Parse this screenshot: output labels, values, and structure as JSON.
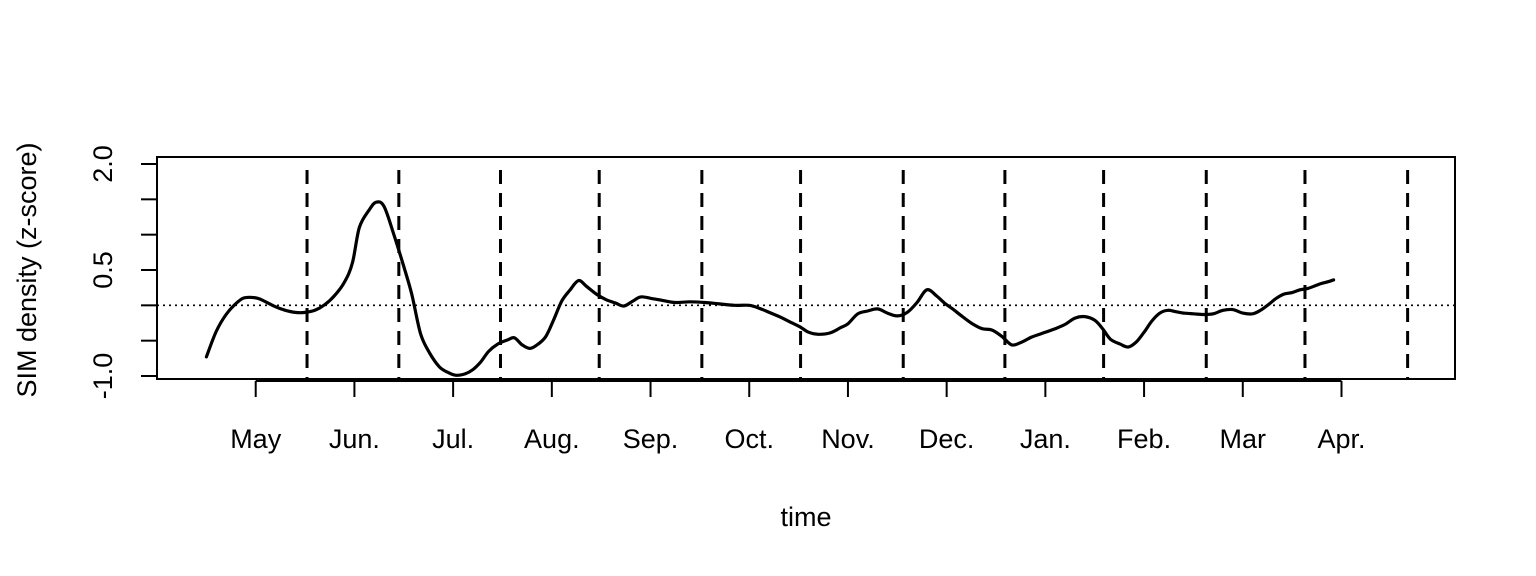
{
  "chart_data": {
    "type": "line",
    "title": "",
    "xlabel": "time",
    "ylabel": "SIM density (z-score)",
    "ylim": [
      -1.0,
      2.0
    ],
    "xlim": [
      -0.5,
      12.65
    ],
    "x_ticks": [
      {
        "pos": 0.5,
        "label": "May"
      },
      {
        "pos": 1.5,
        "label": "Jun."
      },
      {
        "pos": 2.5,
        "label": "Jul."
      },
      {
        "pos": 3.5,
        "label": "Aug."
      },
      {
        "pos": 4.5,
        "label": "Sep."
      },
      {
        "pos": 5.5,
        "label": "Oct."
      },
      {
        "pos": 6.5,
        "label": "Nov."
      },
      {
        "pos": 7.5,
        "label": "Dec."
      },
      {
        "pos": 8.5,
        "label": "Jan."
      },
      {
        "pos": 9.5,
        "label": "Feb."
      },
      {
        "pos": 10.5,
        "label": "Mar"
      },
      {
        "pos": 11.5,
        "label": "Apr."
      }
    ],
    "y_ticks": [
      -1.0,
      -0.5,
      0.0,
      0.5,
      1.0,
      1.5,
      2.0
    ],
    "y_tick_labels": [
      {
        "value": -1.0,
        "label": "-1.0"
      },
      {
        "value": 0.5,
        "label": "0.5"
      },
      {
        "value": 2.0,
        "label": "2.0"
      }
    ],
    "vlines": [
      1.02,
      1.95,
      2.98,
      3.98,
      5.02,
      6.02,
      7.06,
      8.09,
      9.09,
      10.13,
      11.13,
      12.17
    ],
    "vline_style": "dashed",
    "hline": 0.0,
    "hline_style": "dotted",
    "grid": false,
    "series": [
      {
        "values": [
          [
            0.0,
            -0.73
          ],
          [
            0.1,
            -0.37
          ],
          [
            0.2,
            -0.13
          ],
          [
            0.32,
            0.05
          ],
          [
            0.4,
            0.11
          ],
          [
            0.52,
            0.1
          ],
          [
            0.6,
            0.05
          ],
          [
            0.7,
            -0.02
          ],
          [
            0.8,
            -0.07
          ],
          [
            0.9,
            -0.1
          ],
          [
            1.0,
            -0.1
          ],
          [
            1.1,
            -0.07
          ],
          [
            1.2,
            0.01
          ],
          [
            1.3,
            0.14
          ],
          [
            1.4,
            0.33
          ],
          [
            1.48,
            0.6
          ],
          [
            1.55,
            1.1
          ],
          [
            1.65,
            1.35
          ],
          [
            1.72,
            1.46
          ],
          [
            1.8,
            1.4
          ],
          [
            1.9,
            1.0
          ],
          [
            2.0,
            0.55
          ],
          [
            2.08,
            0.16
          ],
          [
            2.17,
            -0.4
          ],
          [
            2.26,
            -0.67
          ],
          [
            2.36,
            -0.87
          ],
          [
            2.45,
            -0.95
          ],
          [
            2.53,
            -0.99
          ],
          [
            2.62,
            -0.97
          ],
          [
            2.7,
            -0.91
          ],
          [
            2.78,
            -0.8
          ],
          [
            2.86,
            -0.65
          ],
          [
            2.95,
            -0.55
          ],
          [
            3.05,
            -0.49
          ],
          [
            3.12,
            -0.46
          ],
          [
            3.2,
            -0.56
          ],
          [
            3.28,
            -0.61
          ],
          [
            3.36,
            -0.55
          ],
          [
            3.44,
            -0.44
          ],
          [
            3.52,
            -0.2
          ],
          [
            3.6,
            0.06
          ],
          [
            3.68,
            0.21
          ],
          [
            3.77,
            0.35
          ],
          [
            3.85,
            0.27
          ],
          [
            3.95,
            0.16
          ],
          [
            4.05,
            0.08
          ],
          [
            4.15,
            0.03
          ],
          [
            4.23,
            -0.01
          ],
          [
            4.32,
            0.06
          ],
          [
            4.4,
            0.12
          ],
          [
            4.5,
            0.1
          ],
          [
            4.62,
            0.07
          ],
          [
            4.75,
            0.04
          ],
          [
            4.9,
            0.05
          ],
          [
            5.05,
            0.04
          ],
          [
            5.2,
            0.02
          ],
          [
            5.35,
            0.0
          ],
          [
            5.5,
            0.0
          ],
          [
            5.6,
            -0.04
          ],
          [
            5.72,
            -0.11
          ],
          [
            5.82,
            -0.17
          ],
          [
            5.92,
            -0.24
          ],
          [
            6.02,
            -0.31
          ],
          [
            6.1,
            -0.38
          ],
          [
            6.2,
            -0.41
          ],
          [
            6.32,
            -0.39
          ],
          [
            6.42,
            -0.32
          ],
          [
            6.5,
            -0.26
          ],
          [
            6.6,
            -0.12
          ],
          [
            6.7,
            -0.08
          ],
          [
            6.8,
            -0.05
          ],
          [
            6.9,
            -0.11
          ],
          [
            7.0,
            -0.15
          ],
          [
            7.1,
            -0.1
          ],
          [
            7.2,
            0.04
          ],
          [
            7.3,
            0.22
          ],
          [
            7.4,
            0.13
          ],
          [
            7.48,
            0.03
          ],
          [
            7.56,
            -0.05
          ],
          [
            7.66,
            -0.16
          ],
          [
            7.76,
            -0.26
          ],
          [
            7.86,
            -0.33
          ],
          [
            7.96,
            -0.35
          ],
          [
            8.06,
            -0.44
          ],
          [
            8.16,
            -0.56
          ],
          [
            8.26,
            -0.52
          ],
          [
            8.36,
            -0.45
          ],
          [
            8.46,
            -0.4
          ],
          [
            8.6,
            -0.33
          ],
          [
            8.7,
            -0.27
          ],
          [
            8.8,
            -0.18
          ],
          [
            8.9,
            -0.16
          ],
          [
            9.0,
            -0.21
          ],
          [
            9.08,
            -0.33
          ],
          [
            9.16,
            -0.48
          ],
          [
            9.26,
            -0.55
          ],
          [
            9.34,
            -0.59
          ],
          [
            9.42,
            -0.52
          ],
          [
            9.5,
            -0.38
          ],
          [
            9.58,
            -0.22
          ],
          [
            9.66,
            -0.11
          ],
          [
            9.74,
            -0.07
          ],
          [
            9.82,
            -0.09
          ],
          [
            9.9,
            -0.11
          ],
          [
            10.0,
            -0.12
          ],
          [
            10.1,
            -0.13
          ],
          [
            10.2,
            -0.12
          ],
          [
            10.3,
            -0.07
          ],
          [
            10.4,
            -0.06
          ],
          [
            10.5,
            -0.11
          ],
          [
            10.6,
            -0.12
          ],
          [
            10.68,
            -0.07
          ],
          [
            10.76,
            0.01
          ],
          [
            10.84,
            0.1
          ],
          [
            10.92,
            0.16
          ],
          [
            11.0,
            0.18
          ],
          [
            11.08,
            0.22
          ],
          [
            11.16,
            0.24
          ],
          [
            11.24,
            0.28
          ],
          [
            11.3,
            0.31
          ],
          [
            11.38,
            0.34
          ],
          [
            11.42,
            0.36
          ]
        ]
      }
    ]
  }
}
